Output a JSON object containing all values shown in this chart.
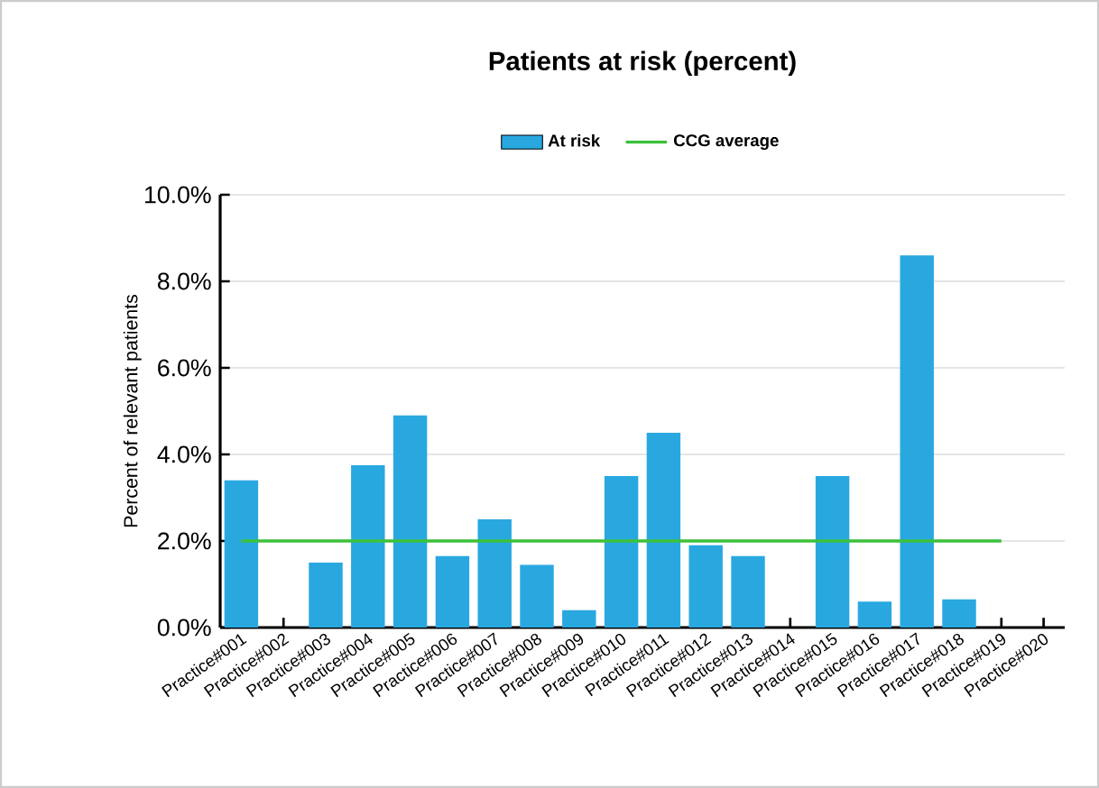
{
  "chart_data": {
    "type": "bar",
    "title": "Patients at risk (percent)",
    "ylabel": "Percent of relevant patients",
    "categories": [
      "Practice#001",
      "Practice#002",
      "Practice#003",
      "Practice#004",
      "Practice#005",
      "Practice#006",
      "Practice#007",
      "Practice#008",
      "Practice#009",
      "Practice#010",
      "Practice#011",
      "Practice#012",
      "Practice#013",
      "Practice#014",
      "Practice#015",
      "Practice#016",
      "Practice#017",
      "Practice#018",
      "Practice#019",
      "Practice#020"
    ],
    "series": [
      {
        "name": "At risk",
        "color": "#29a8e0",
        "values": [
          3.4,
          null,
          1.5,
          3.75,
          4.9,
          1.65,
          2.5,
          1.45,
          0.4,
          3.5,
          4.5,
          1.9,
          1.65,
          null,
          3.5,
          0.6,
          8.6,
          0.65,
          null,
          null
        ]
      },
      {
        "name": "CCG average",
        "type": "line",
        "color": "#3cc13b",
        "values": [
          2,
          2,
          2,
          2,
          2,
          2,
          2,
          2,
          2,
          2,
          2,
          2,
          2,
          2,
          2,
          2,
          2,
          2,
          2,
          null
        ]
      }
    ],
    "ylim": [
      0,
      10
    ],
    "yticks": [
      {
        "value": 0,
        "label": "0.0%"
      },
      {
        "value": 2,
        "label": "2.0%"
      },
      {
        "value": 4,
        "label": "4.0%"
      },
      {
        "value": 6,
        "label": "6.0%"
      },
      {
        "value": 8,
        "label": "8.0%"
      },
      {
        "value": 10,
        "label": "10.0%"
      }
    ],
    "grid": "y",
    "legend": "top",
    "marker": "none",
    "line_style": "solid"
  }
}
